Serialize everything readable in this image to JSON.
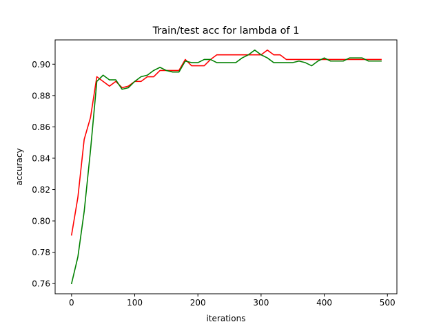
{
  "chart_data": {
    "type": "line",
    "title": "Train/test acc for lambda of 1",
    "xlabel": "iterations",
    "ylabel": "accuracy",
    "xlim": [
      -26,
      515
    ],
    "ylim": [
      0.7535,
      0.9155
    ],
    "xticks": [
      0,
      100,
      200,
      300,
      400,
      500
    ],
    "xtick_labels": [
      "0",
      "100",
      "200",
      "300",
      "400",
      "500"
    ],
    "yticks": [
      0.76,
      0.78,
      0.8,
      0.82,
      0.84,
      0.86,
      0.88,
      0.9
    ],
    "ytick_labels": [
      "0.76",
      "0.78",
      "0.80",
      "0.82",
      "0.84",
      "0.86",
      "0.88",
      "0.90"
    ],
    "grid": false,
    "x": [
      0,
      10,
      20,
      30,
      40,
      50,
      60,
      70,
      80,
      90,
      100,
      110,
      120,
      130,
      140,
      150,
      160,
      170,
      180,
      190,
      200,
      210,
      220,
      230,
      240,
      250,
      260,
      270,
      280,
      290,
      300,
      310,
      320,
      330,
      340,
      350,
      360,
      370,
      380,
      390,
      400,
      410,
      420,
      430,
      440,
      450,
      460,
      470,
      480,
      490
    ],
    "series": [
      {
        "color": "#ff0000",
        "values": [
          0.791,
          0.815,
          0.852,
          0.866,
          0.892,
          0.889,
          0.886,
          0.889,
          0.885,
          0.886,
          0.889,
          0.889,
          0.892,
          0.892,
          0.896,
          0.896,
          0.896,
          0.896,
          0.903,
          0.899,
          0.899,
          0.899,
          0.903,
          0.906,
          0.906,
          0.906,
          0.906,
          0.906,
          0.906,
          0.906,
          0.906,
          0.909,
          0.906,
          0.906,
          0.903,
          0.903,
          0.903,
          0.903,
          0.903,
          0.903,
          0.903,
          0.903,
          0.903,
          0.903,
          0.903,
          0.903,
          0.903,
          0.903,
          0.903,
          0.903
        ]
      },
      {
        "color": "#008000",
        "values": [
          0.76,
          0.777,
          0.806,
          0.845,
          0.889,
          0.893,
          0.89,
          0.89,
          0.884,
          0.885,
          0.889,
          0.892,
          0.893,
          0.896,
          0.898,
          0.896,
          0.895,
          0.895,
          0.902,
          0.901,
          0.901,
          0.903,
          0.903,
          0.901,
          0.901,
          0.901,
          0.901,
          0.904,
          0.906,
          0.909,
          0.906,
          0.904,
          0.901,
          0.901,
          0.901,
          0.901,
          0.902,
          0.901,
          0.899,
          0.902,
          0.904,
          0.902,
          0.902,
          0.902,
          0.904,
          0.904,
          0.904,
          0.902,
          0.902,
          0.902
        ]
      }
    ]
  }
}
